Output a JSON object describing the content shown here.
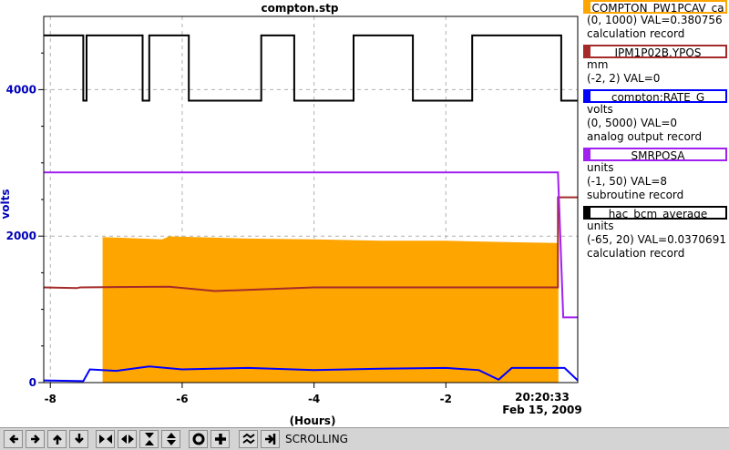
{
  "window_title": "compton.stp",
  "mode": "SCROLLING",
  "timestamp": {
    "time": "20:20:33",
    "date": "Feb 15, 2009"
  },
  "legend": [
    {
      "name": "COMPTON_PW1PCAV_ca",
      "color": "#ffa500",
      "lines": [
        "(0, 1000) VAL=0.380756",
        "calculation record"
      ]
    },
    {
      "name": "IPM1P02B.YPOS",
      "color": "#a52a2a",
      "lines": [
        "mm",
        "(-2, 2) VAL=0"
      ]
    },
    {
      "name": "compton:RATE_G",
      "color": "#0000ff",
      "lines": [
        "volts",
        "(0, 5000) VAL=0",
        "analog output record"
      ]
    },
    {
      "name": "SMRPOSA",
      "color": "#a020f0",
      "lines": [
        "units",
        "(-1, 50) VAL=8",
        "subroutine record"
      ]
    },
    {
      "name": "hac_bcm_average",
      "color": "#000000",
      "lines": [
        "units",
        "(-65, 20) VAL=0.0370691",
        "calculation record"
      ]
    }
  ],
  "toolbar": [
    {
      "name": "scroll-left-icon"
    },
    {
      "name": "scroll-right-icon"
    },
    {
      "name": "scroll-up-icon"
    },
    {
      "name": "scroll-down-icon"
    },
    {
      "name": "compress-horizontal-icon"
    },
    {
      "name": "expand-horizontal-icon"
    },
    {
      "name": "compress-vertical-icon"
    },
    {
      "name": "expand-vertical-icon"
    },
    {
      "name": "circle-icon"
    },
    {
      "name": "plus-icon"
    },
    {
      "name": "autoscale-icon"
    },
    {
      "name": "exit-scroll-icon"
    }
  ],
  "chart_data": {
    "type": "line",
    "title": "compton.stp",
    "xlabel": "(Hours)",
    "ylabel": "volts",
    "xlim": [
      -8.1,
      0.0
    ],
    "ylim": [
      0,
      5000
    ],
    "x_ticks": [
      -8,
      -6,
      -4,
      -2
    ],
    "x_tick_labels": [
      "-8",
      "-6",
      "-4",
      "-2"
    ],
    "y_ticks": [
      0,
      2000,
      4000
    ],
    "y_tick_labels": [
      "0",
      "2000",
      "4000"
    ],
    "y_axis_color": "#0000bb",
    "grid": true,
    "series": [
      {
        "name": "hac_bcm_average",
        "color": "#000000",
        "x": [
          -8.1,
          -7.5,
          -7.5,
          -7.45,
          -7.45,
          -6.6,
          -6.6,
          -6.5,
          -6.5,
          -5.9,
          -5.9,
          -4.8,
          -4.8,
          -4.3,
          -4.3,
          -3.4,
          -3.4,
          -2.5,
          -2.5,
          -1.6,
          -1.6,
          -0.25,
          -0.25,
          0.0
        ],
        "y": [
          4740,
          4740,
          3850,
          3850,
          4740,
          4740,
          3850,
          3850,
          4740,
          4740,
          3850,
          3850,
          4740,
          4740,
          3850,
          3850,
          4740,
          4740,
          3850,
          3850,
          4740,
          4740,
          3850,
          3850
        ]
      },
      {
        "name": "SMRPOSA",
        "color": "#a020f0",
        "x": [
          -8.1,
          -0.3,
          -0.22,
          0.0
        ],
        "y": [
          2870,
          2870,
          890,
          890
        ]
      },
      {
        "name": "IPM1P02B.YPOS",
        "color": "#a52a2a",
        "x": [
          -8.1,
          -7.6,
          -7.55,
          -6.2,
          -5.5,
          -4.0,
          -2.0,
          -0.3,
          -0.3,
          0.0
        ],
        "y": [
          1300,
          1290,
          1300,
          1310,
          1250,
          1300,
          1300,
          1300,
          2530,
          2530
        ]
      },
      {
        "name": "compton:RATE_G",
        "color": "#0000ff",
        "x": [
          -8.1,
          -7.5,
          -7.4,
          -7.0,
          -6.5,
          -6.0,
          -5.0,
          -4.0,
          -3.0,
          -2.0,
          -1.5,
          -1.2,
          -1.0,
          -0.2,
          0.0
        ],
        "y": [
          30,
          20,
          180,
          160,
          220,
          180,
          200,
          170,
          190,
          200,
          170,
          40,
          200,
          200,
          30
        ]
      },
      {
        "name": "COMPTON_PW1PCAV_ca",
        "color": "#ffa500",
        "x": [
          -8.1,
          -7.2,
          -7.2,
          -6.3,
          -6.2,
          -5.0,
          -4.0,
          -3.0,
          -2.0,
          -1.0,
          -0.3,
          -0.3,
          0.0
        ],
        "y": [
          0,
          0,
          1980,
          1950,
          1990,
          1960,
          1950,
          1930,
          1930,
          1910,
          1900,
          0,
          0
        ]
      }
    ]
  }
}
